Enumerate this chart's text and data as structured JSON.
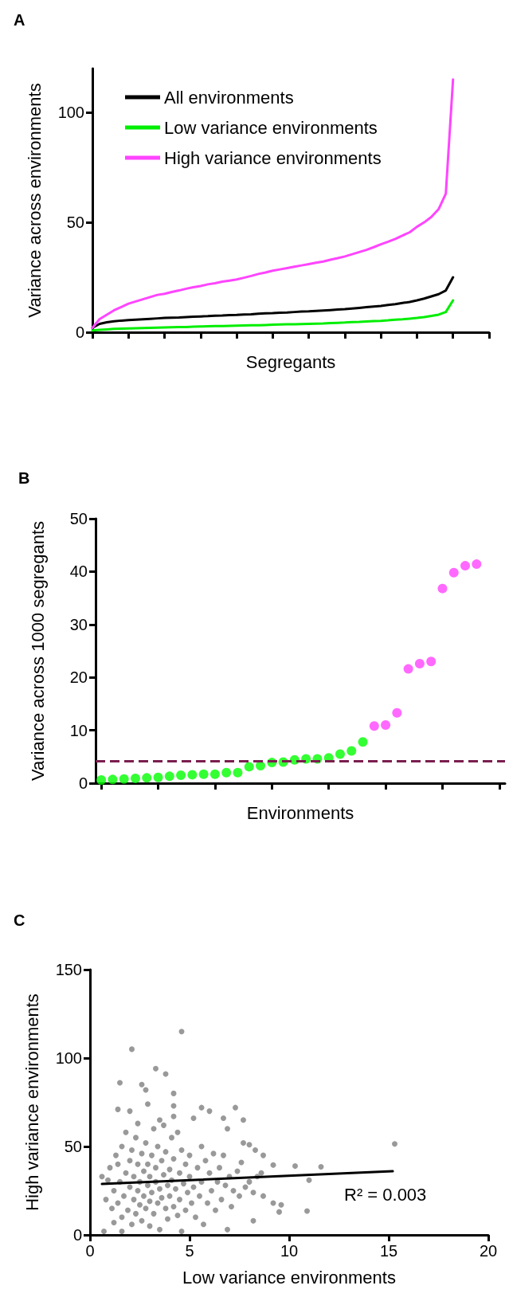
{
  "chart_data": [
    {
      "type": "line",
      "title": "A",
      "xlabel": "Segregants",
      "ylabel": "Variance across environments",
      "categories": [
        null,
        null,
        null,
        null,
        null,
        null,
        null,
        null,
        null,
        null,
        null,
        null,
        null,
        null,
        null,
        null,
        null,
        null,
        null,
        null,
        null,
        null,
        null,
        null,
        null,
        null,
        null,
        null,
        null,
        null,
        null,
        null,
        null,
        null,
        null,
        null,
        null,
        null,
        null,
        null,
        null,
        null,
        null,
        null,
        null,
        null,
        null,
        null,
        null,
        null,
        null,
        null,
        null,
        null,
        null,
        null
      ],
      "series": [
        {
          "name": "All environments",
          "color": "#000000",
          "values": [
            2,
            3.8,
            4.5,
            5,
            5.3,
            5.5,
            5.7,
            5.9,
            6.1,
            6.3,
            6.5,
            6.6,
            6.7,
            6.9,
            7.1,
            7.2,
            7.3,
            7.5,
            7.6,
            7.8,
            7.9,
            8.1,
            8.2,
            8.4,
            8.6,
            8.7,
            8.9,
            9,
            9.2,
            9.4,
            9.5,
            9.7,
            9.9,
            10.1,
            10.3,
            10.5,
            10.8,
            11.1,
            11.4,
            11.7,
            12,
            12.4,
            12.8,
            13.3,
            13.8,
            14.5,
            15.3,
            16.3,
            17.3,
            19,
            25,
            null,
            null,
            null,
            null,
            null
          ]
        },
        {
          "name": "Low variance environments",
          "color": "#00ee00",
          "values": [
            0.8,
            1.1,
            1.3,
            1.5,
            1.6,
            1.7,
            1.8,
            1.9,
            2,
            2.1,
            2.2,
            2.3,
            2.4,
            2.4,
            2.5,
            2.6,
            2.7,
            2.8,
            2.8,
            2.9,
            3,
            3.1,
            3.2,
            3.2,
            3.3,
            3.4,
            3.5,
            3.6,
            3.6,
            3.7,
            3.8,
            3.9,
            4,
            4.2,
            4.3,
            4.4,
            4.6,
            4.7,
            4.9,
            5.1,
            5.2,
            5.4,
            5.7,
            5.9,
            6.2,
            6.5,
            6.9,
            7.4,
            8,
            9.2,
            14.5,
            null,
            null,
            null,
            null,
            null
          ]
        },
        {
          "name": "High variance environments",
          "color": "#ff44ff",
          "values": [
            2,
            6,
            8,
            10,
            11.5,
            13,
            14,
            15,
            16,
            17,
            17.5,
            18.3,
            19,
            19.8,
            20.5,
            21,
            21.8,
            22.3,
            23,
            23.5,
            24,
            24.8,
            25.6,
            26.5,
            27.2,
            28,
            28.6,
            29.2,
            29.8,
            30.4,
            31,
            31.6,
            32.2,
            33,
            33.7,
            34.5,
            35.5,
            36.5,
            37.5,
            38.7,
            40,
            41.2,
            42.5,
            44,
            45.5,
            48,
            50,
            52.5,
            56,
            63,
            115,
            null,
            null,
            null,
            null,
            null
          ]
        }
      ],
      "ylim": [
        0,
        120
      ],
      "yticks": [
        0,
        50,
        100
      ],
      "tick_labels": "y",
      "legend": "top left",
      "marker": "none",
      "line_style": "solid"
    },
    {
      "type": "scatter",
      "title": "B",
      "xlabel": "Environments",
      "ylabel": "Variance across 1000 segregants",
      "categories": [
        null,
        null,
        null,
        null,
        null,
        null,
        null,
        null,
        null,
        null,
        null,
        null,
        null,
        null,
        null,
        null,
        null,
        null,
        null,
        null,
        null,
        null,
        null,
        null,
        null,
        null,
        null,
        null,
        null,
        null,
        null,
        null,
        null,
        null,
        null,
        null
      ],
      "series": [
        {
          "color": "#00ff00",
          "values": [
            0.6,
            0.7,
            0.8,
            0.9,
            1.0,
            1.1,
            1.3,
            1.5,
            1.6,
            1.7,
            1.7,
            2.0,
            2.0,
            3.1,
            3.3,
            3.9,
            4.0,
            4.4,
            4.6,
            4.6,
            4.8,
            5.5,
            6.1,
            7.8,
            null,
            null,
            null,
            null,
            null,
            null,
            null,
            null,
            null,
            null,
            null,
            null
          ]
        },
        {
          "color": "#ff44ff",
          "values": [
            null,
            null,
            null,
            null,
            null,
            null,
            null,
            null,
            null,
            null,
            null,
            null,
            null,
            null,
            null,
            null,
            null,
            null,
            null,
            null,
            null,
            null,
            null,
            null,
            10.8,
            11.0,
            13.3,
            21.6,
            22.6,
            23.0,
            36.8,
            39.8,
            41.1,
            41.4,
            null,
            null
          ]
        }
      ],
      "ylim": [
        0,
        50
      ],
      "yticks": [
        0,
        10,
        20,
        30,
        40,
        50
      ],
      "tick_labels": "y",
      "marker": "circle",
      "ref_lines": [
        {
          "axis": "y",
          "value": 4.2,
          "color": "#7b1e4e",
          "line_style": "dashed"
        }
      ]
    },
    {
      "type": "scatter",
      "title": "C",
      "xlabel": "Low variance environments",
      "ylabel": "High variance environments",
      "series": [
        {
          "color": "#808080",
          "x": [
            1.0,
            1.2,
            1.3,
            1.4,
            1.5,
            1.6,
            1.6,
            1.7,
            1.8,
            1.8,
            1.9,
            2.0,
            2.0,
            2.1,
            2.1,
            2.2,
            2.2,
            2.3,
            2.3,
            2.4,
            2.4,
            2.5,
            2.5,
            2.6,
            2.6,
            2.7,
            2.7,
            2.8,
            2.8,
            2.9,
            2.9,
            3.0,
            3.0,
            3.0,
            3.1,
            3.1,
            3.2,
            3.2,
            3.3,
            3.3,
            3.4,
            3.4,
            3.5,
            3.5,
            3.6,
            3.6,
            3.7,
            3.7,
            3.8,
            3.8,
            3.9,
            3.9,
            4.0,
            4.0,
            4.1,
            4.1,
            4.2,
            4.2,
            4.3,
            4.4,
            4.4,
            4.5,
            4.5,
            4.6,
            4.6,
            4.7,
            4.8,
            4.8,
            4.9,
            5.0,
            5.0,
            5.1,
            5.2,
            5.2,
            5.3,
            5.4,
            5.5,
            5.6,
            5.6,
            5.7,
            5.8,
            5.9,
            6.0,
            6.1,
            6.2,
            6.3,
            6.4,
            6.5,
            6.6,
            6.7,
            6.8,
            6.9,
            7.0,
            7.1,
            7.2,
            7.4,
            7.5,
            7.6,
            7.8,
            8.0,
            8.2,
            8.4,
            8.6,
            8.7,
            0.8,
            0.9,
            1.1,
            1.2,
            1.4,
            1.6,
            2.0,
            2.4,
            3.5,
            4.2,
            15.3,
            4.6,
            2.1,
            3.3,
            3.8,
            1.5,
            2.6,
            2.8,
            4.2,
            2.9,
            4.2,
            5.6,
            7.3,
            1.4,
            6.0,
            6.7,
            7.7,
            11.6,
            10.3,
            9.2,
            11.0,
            10.9,
            9.5,
            9.6,
            9.2,
            8.2,
            6.9,
            0.7,
            0.6,
            8.3,
            7.7,
            8.7,
            8.0
          ],
          "values": [
            38,
            25,
            45,
            18,
            30,
            10,
            50,
            22,
            35,
            58,
            14,
            42,
            27,
            6,
            48,
            20,
            33,
            55,
            12,
            40,
            25,
            30,
            17,
            46,
            8,
            36,
            22,
            52,
            15,
            28,
            40,
            5,
            19,
            33,
            45,
            24,
            60,
            12,
            30,
            38,
            18,
            50,
            26,
            3,
            42,
            21,
            34,
            62,
            15,
            47,
            28,
            9,
            37,
            22,
            55,
            31,
            16,
            43,
            26,
            58,
            11,
            35,
            20,
            48,
            2,
            29,
            40,
            14,
            24,
            45,
            33,
            18,
            66,
            27,
            10,
            38,
            22,
            50,
            30,
            6,
            42,
            18,
            35,
            25,
            46,
            14,
            30,
            38,
            20,
            45,
            28,
            60,
            33,
            16,
            25,
            36,
            22,
            41,
            27,
            30,
            24,
            33,
            35,
            22,
            20,
            31,
            15,
            7,
            40,
            2,
            70,
            63,
            65,
            67,
            51.5,
            115,
            105,
            94,
            91,
            86,
            85,
            82,
            80,
            74,
            73,
            72,
            72,
            71,
            70,
            66,
            65,
            38.5,
            39,
            39.5,
            31,
            13.5,
            13,
            17,
            18,
            8,
            3,
            2,
            33,
            48,
            52,
            45,
            51
          ]
        },
        {
          "type": "line",
          "marker": "none",
          "color": "#000000",
          "x": [
            0.6,
            15.2
          ],
          "values": [
            28.8,
            36
          ]
        }
      ],
      "xlim": [
        0,
        20
      ],
      "xticks": [
        0,
        5,
        10,
        15,
        20
      ],
      "ylim": [
        0,
        150
      ],
      "yticks": [
        0,
        50,
        100,
        150
      ],
      "marker": "circle",
      "annotations": [
        "R² = 0.003"
      ]
    }
  ]
}
